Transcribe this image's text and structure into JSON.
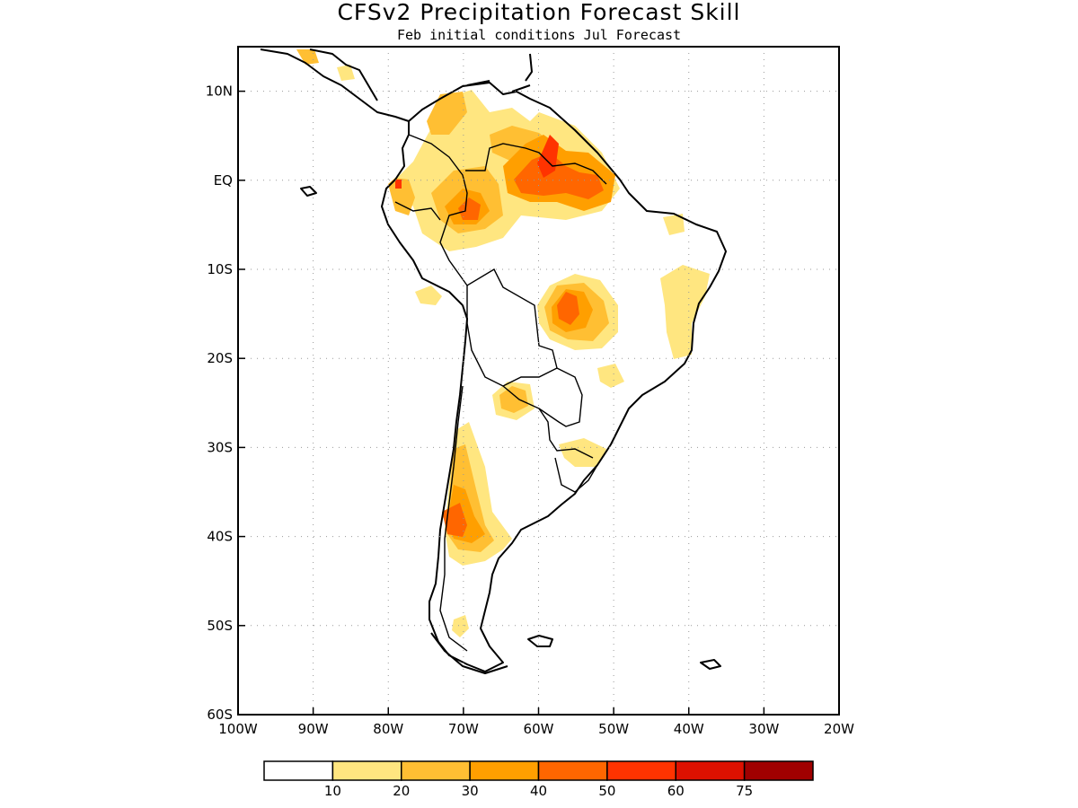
{
  "title": "CFSv2 Precipitation Forecast Skill",
  "subtitle": "Feb initial conditions  Jul Forecast",
  "map": {
    "lon_range": [
      -100,
      -20
    ],
    "lat_range": [
      -60,
      15
    ],
    "lat_ticks": [
      {
        "value": 10,
        "label": "10N"
      },
      {
        "value": 0,
        "label": "EQ"
      },
      {
        "value": -10,
        "label": "10S"
      },
      {
        "value": -20,
        "label": "20S"
      },
      {
        "value": -30,
        "label": "30S"
      },
      {
        "value": -40,
        "label": "40S"
      },
      {
        "value": -50,
        "label": "50S"
      },
      {
        "value": -60,
        "label": "60S"
      }
    ],
    "lon_ticks": [
      {
        "value": -100,
        "label": "100W"
      },
      {
        "value": -90,
        "label": "90W"
      },
      {
        "value": -80,
        "label": "80W"
      },
      {
        "value": -70,
        "label": "70W"
      },
      {
        "value": -60,
        "label": "60W"
      },
      {
        "value": -50,
        "label": "50W"
      },
      {
        "value": -40,
        "label": "40W"
      },
      {
        "value": -30,
        "label": "30W"
      },
      {
        "value": -20,
        "label": "20W"
      }
    ],
    "grid": true,
    "colorbar": {
      "colors": [
        "#ffffff",
        "#ffe680",
        "#ffbf33",
        "#ff9f00",
        "#ff6600",
        "#ff3300",
        "#dd1100",
        "#a00000"
      ],
      "labels": [
        "10",
        "20",
        "30",
        "40",
        "50",
        "60",
        "75"
      ]
    }
  }
}
